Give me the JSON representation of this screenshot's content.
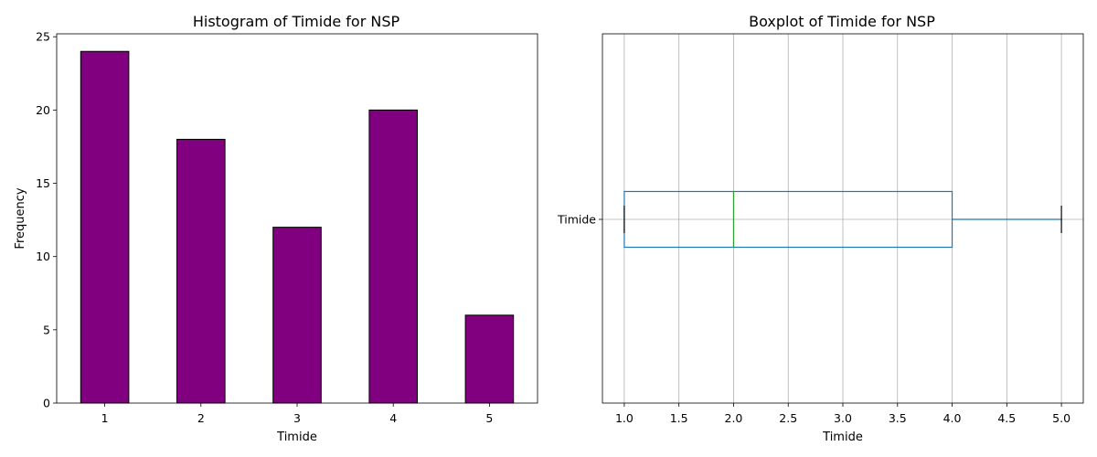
{
  "chart_data": [
    {
      "type": "bar",
      "title": "Histogram of Timide for NSP",
      "xlabel": "Timide",
      "ylabel": "Frequency",
      "categories": [
        "1",
        "2",
        "3",
        "4",
        "5"
      ],
      "values": [
        24,
        18,
        12,
        20,
        6
      ],
      "ylim": [
        0,
        25.2
      ],
      "yticks": [
        0,
        5,
        10,
        15,
        20,
        25
      ],
      "bar_color": "#800080",
      "edge_color": "#000000",
      "grid": false
    },
    {
      "type": "boxplot",
      "title": "Boxplot of Timide for NSP",
      "xlabel": "Timide",
      "ylabel": "",
      "series": [
        {
          "name": "Timide",
          "min": 1.0,
          "q1": 1.0,
          "median": 2.0,
          "q3": 4.0,
          "max": 5.0
        }
      ],
      "xlim": [
        0.8,
        5.2
      ],
      "xticks": [
        1.0,
        1.5,
        2.0,
        2.5,
        3.0,
        3.5,
        4.0,
        4.5,
        5.0
      ],
      "xtick_labels": [
        "1.0",
        "1.5",
        "2.0",
        "2.5",
        "3.0",
        "3.5",
        "4.0",
        "4.5",
        "5.0"
      ],
      "box_color": "#1f77b4",
      "median_color": "#2ca02c",
      "whisker_cap_color": "#000000",
      "grid": true,
      "grid_color": "#b0b0b0"
    }
  ]
}
